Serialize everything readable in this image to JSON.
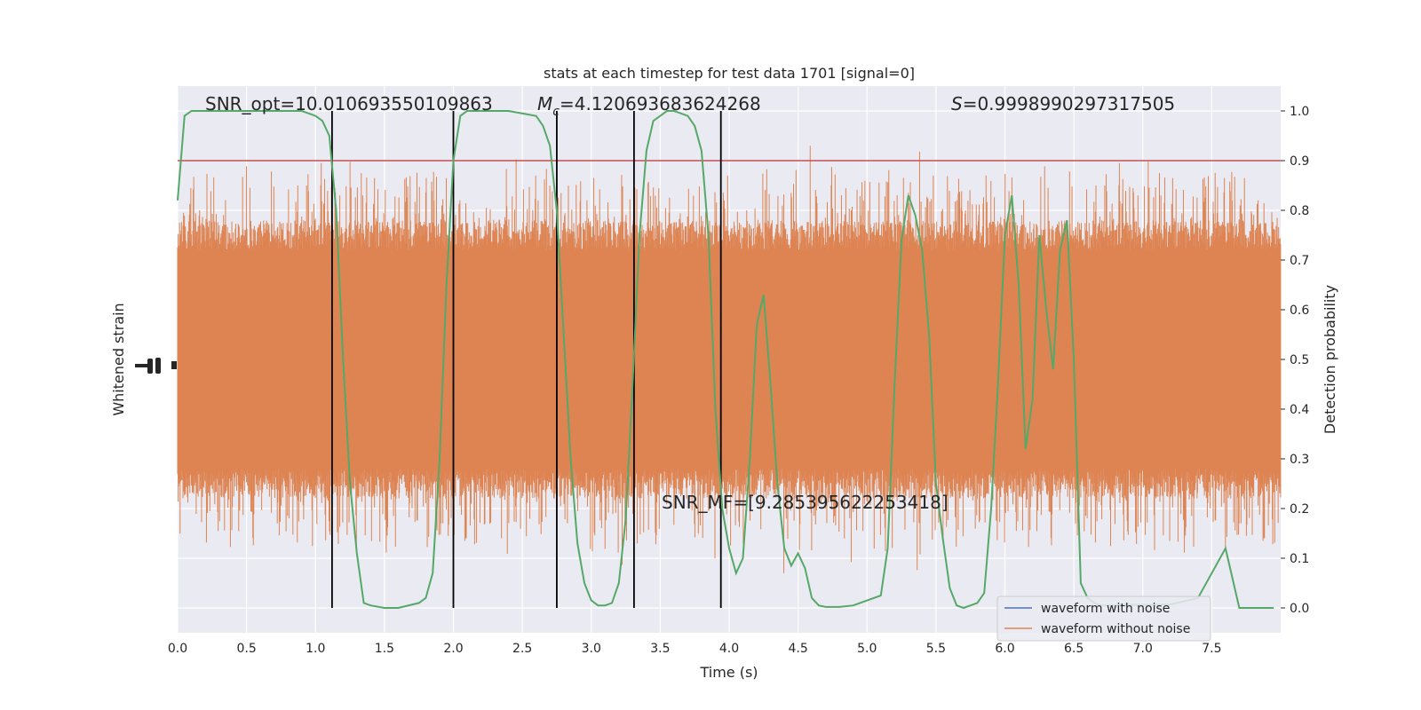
{
  "chart_data": {
    "type": "line",
    "title": "stats at each timestep for test data 1701 [signal=0]",
    "xlabel": "Time (s)",
    "ylabel_left": "Whitened strain",
    "ylabel_right": "Detection probability",
    "xlim": [
      0,
      8
    ],
    "ylim_right": [
      -0.05,
      1.05
    ],
    "x_ticks": [
      "0.0",
      "0.5",
      "1.0",
      "1.5",
      "2.0",
      "2.5",
      "3.0",
      "3.5",
      "4.0",
      "4.5",
      "5.0",
      "5.5",
      "6.0",
      "6.5",
      "7.0",
      "7.5"
    ],
    "y_right_ticks": [
      "0.0",
      "0.1",
      "0.2",
      "0.3",
      "0.4",
      "0.5",
      "0.6",
      "0.7",
      "0.8",
      "0.9",
      "1.0"
    ],
    "grid": true,
    "legend_position": "lower-right",
    "legend": [
      {
        "label": "waveform with noise",
        "color": "#4c72b0"
      },
      {
        "label": "waveform without noise",
        "color": "#dd8452"
      }
    ],
    "annotations": {
      "snr_opt": "SNR_opt=10.010693550109863",
      "mc_symbol": "M",
      "mc_sub": "c",
      "mc_value": "=4.120693683624268",
      "s_symbol": "S",
      "s_value": "=0.9998990297317505",
      "snr_mf": "SNR_MF=[9.285395622253418]"
    },
    "threshold": {
      "y": 0.9,
      "color": "#c44e52"
    },
    "vertical_lines_x": [
      1.12,
      2.0,
      2.75,
      3.31,
      3.94
    ],
    "strain_band": {
      "color": "#dd8452",
      "center": 0.5,
      "core_halfwidth": 0.22,
      "max_halfwidth": 0.43,
      "seed": 1701
    },
    "detection_probability": {
      "color": "#55a868",
      "x": [
        0.0,
        0.05,
        0.1,
        0.2,
        0.3,
        0.5,
        0.7,
        0.9,
        1.0,
        1.05,
        1.1,
        1.15,
        1.2,
        1.25,
        1.3,
        1.35,
        1.4,
        1.5,
        1.6,
        1.75,
        1.8,
        1.85,
        1.9,
        1.95,
        2.0,
        2.05,
        2.1,
        2.2,
        2.4,
        2.6,
        2.65,
        2.7,
        2.75,
        2.8,
        2.85,
        2.9,
        2.95,
        3.0,
        3.05,
        3.1,
        3.15,
        3.2,
        3.25,
        3.3,
        3.35,
        3.4,
        3.45,
        3.5,
        3.55,
        3.6,
        3.7,
        3.75,
        3.8,
        3.85,
        3.9,
        3.95,
        4.0,
        4.05,
        4.1,
        4.15,
        4.2,
        4.25,
        4.3,
        4.35,
        4.4,
        4.45,
        4.5,
        4.55,
        4.6,
        4.65,
        4.7,
        4.8,
        4.9,
        5.0,
        5.1,
        5.15,
        5.2,
        5.25,
        5.3,
        5.35,
        5.4,
        5.45,
        5.5,
        5.55,
        5.6,
        5.65,
        5.7,
        5.75,
        5.8,
        5.85,
        5.9,
        5.95,
        6.0,
        6.05,
        6.1,
        6.15,
        6.2,
        6.25,
        6.3,
        6.35,
        6.4,
        6.45,
        6.5,
        6.55,
        6.6,
        6.65,
        6.7,
        6.75,
        6.8,
        6.85,
        6.9,
        7.0,
        7.2,
        7.4,
        7.6,
        7.7,
        7.8,
        7.85,
        7.9,
        7.95
      ],
      "y": [
        0.82,
        0.99,
        1.0,
        1.0,
        1.0,
        1.0,
        1.0,
        1.0,
        0.99,
        0.98,
        0.95,
        0.8,
        0.5,
        0.25,
        0.11,
        0.01,
        0.005,
        0.0,
        0.0,
        0.01,
        0.02,
        0.07,
        0.3,
        0.65,
        0.9,
        0.99,
        1.0,
        1.0,
        1.0,
        0.99,
        0.97,
        0.93,
        0.8,
        0.55,
        0.3,
        0.13,
        0.05,
        0.015,
        0.005,
        0.005,
        0.01,
        0.05,
        0.18,
        0.45,
        0.75,
        0.92,
        0.98,
        0.99,
        1.0,
        1.0,
        0.99,
        0.97,
        0.92,
        0.75,
        0.4,
        0.2,
        0.12,
        0.07,
        0.1,
        0.3,
        0.57,
        0.63,
        0.45,
        0.25,
        0.12,
        0.085,
        0.11,
        0.08,
        0.02,
        0.005,
        0.002,
        0.002,
        0.005,
        0.015,
        0.025,
        0.12,
        0.45,
        0.74,
        0.83,
        0.79,
        0.72,
        0.55,
        0.25,
        0.14,
        0.04,
        0.005,
        0.0,
        0.005,
        0.01,
        0.03,
        0.2,
        0.45,
        0.75,
        0.83,
        0.65,
        0.32,
        0.42,
        0.75,
        0.6,
        0.48,
        0.72,
        0.78,
        0.5,
        0.05,
        0.02,
        0.01,
        0.005,
        0.005,
        0.005,
        0.006,
        0.006,
        0.006,
        0.007,
        0.02,
        0.12,
        0.0,
        0.0,
        0.0,
        0.0,
        0.0
      ]
    }
  }
}
